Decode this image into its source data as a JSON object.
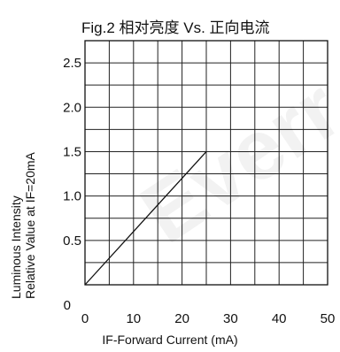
{
  "title": "Fig.2  相对亮度  Vs. 正向电流",
  "ylabel": [
    "Luminous Intensity",
    "Relative Value at IF=20mA"
  ],
  "xlabel": "IF-Forward Current (mA)",
  "watermark": "Everr",
  "chart_data": {
    "type": "line",
    "title": "Fig.2  相对亮度  Vs. 正向电流",
    "xlabel": "IF-Forward Current (mA)",
    "ylabel": "Luminous Intensity Relative Value at IF=20mA",
    "xlim": [
      0,
      50
    ],
    "ylim": [
      0,
      2.75
    ],
    "xticks": [
      0,
      10,
      20,
      30,
      40,
      50
    ],
    "xtick_labels": [
      "0",
      "10",
      "20",
      "30",
      "40",
      "50"
    ],
    "yticks": [
      0,
      0.5,
      1.0,
      1.5,
      2.0,
      2.5
    ],
    "ytick_labels": [
      "0",
      "0.5",
      "1.0",
      "1.5",
      "2.0",
      "2.5"
    ],
    "grid": true,
    "series": [
      {
        "x": [
          0,
          25
        ],
        "y": [
          0,
          1.5
        ]
      }
    ]
  }
}
